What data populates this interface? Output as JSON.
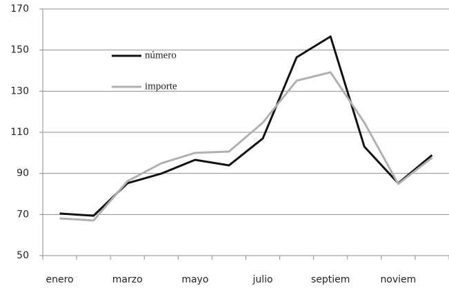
{
  "chart_data": {
    "type": "line",
    "categories": [
      "enero",
      null,
      "marzo",
      null,
      "mayo",
      null,
      "julio",
      null,
      "septiem",
      null,
      "noviem",
      null
    ],
    "series": [
      {
        "name": "número",
        "color": "#111111",
        "values": [
          70.5,
          69.4,
          85.2,
          89.9,
          96.6,
          93.9,
          107,
          146.5,
          156.6,
          103,
          85.2,
          98.9
        ]
      },
      {
        "name": "importe",
        "color": "#b0b0b0",
        "values": [
          68.1,
          67.1,
          86.2,
          94.9,
          100,
          100.6,
          114.7,
          135.1,
          139.2,
          114.7,
          84.9,
          97.6
        ]
      }
    ],
    "ylim": [
      50,
      170
    ],
    "yticks": [
      50,
      70,
      90,
      110,
      130,
      150,
      170
    ],
    "grid": true
  }
}
